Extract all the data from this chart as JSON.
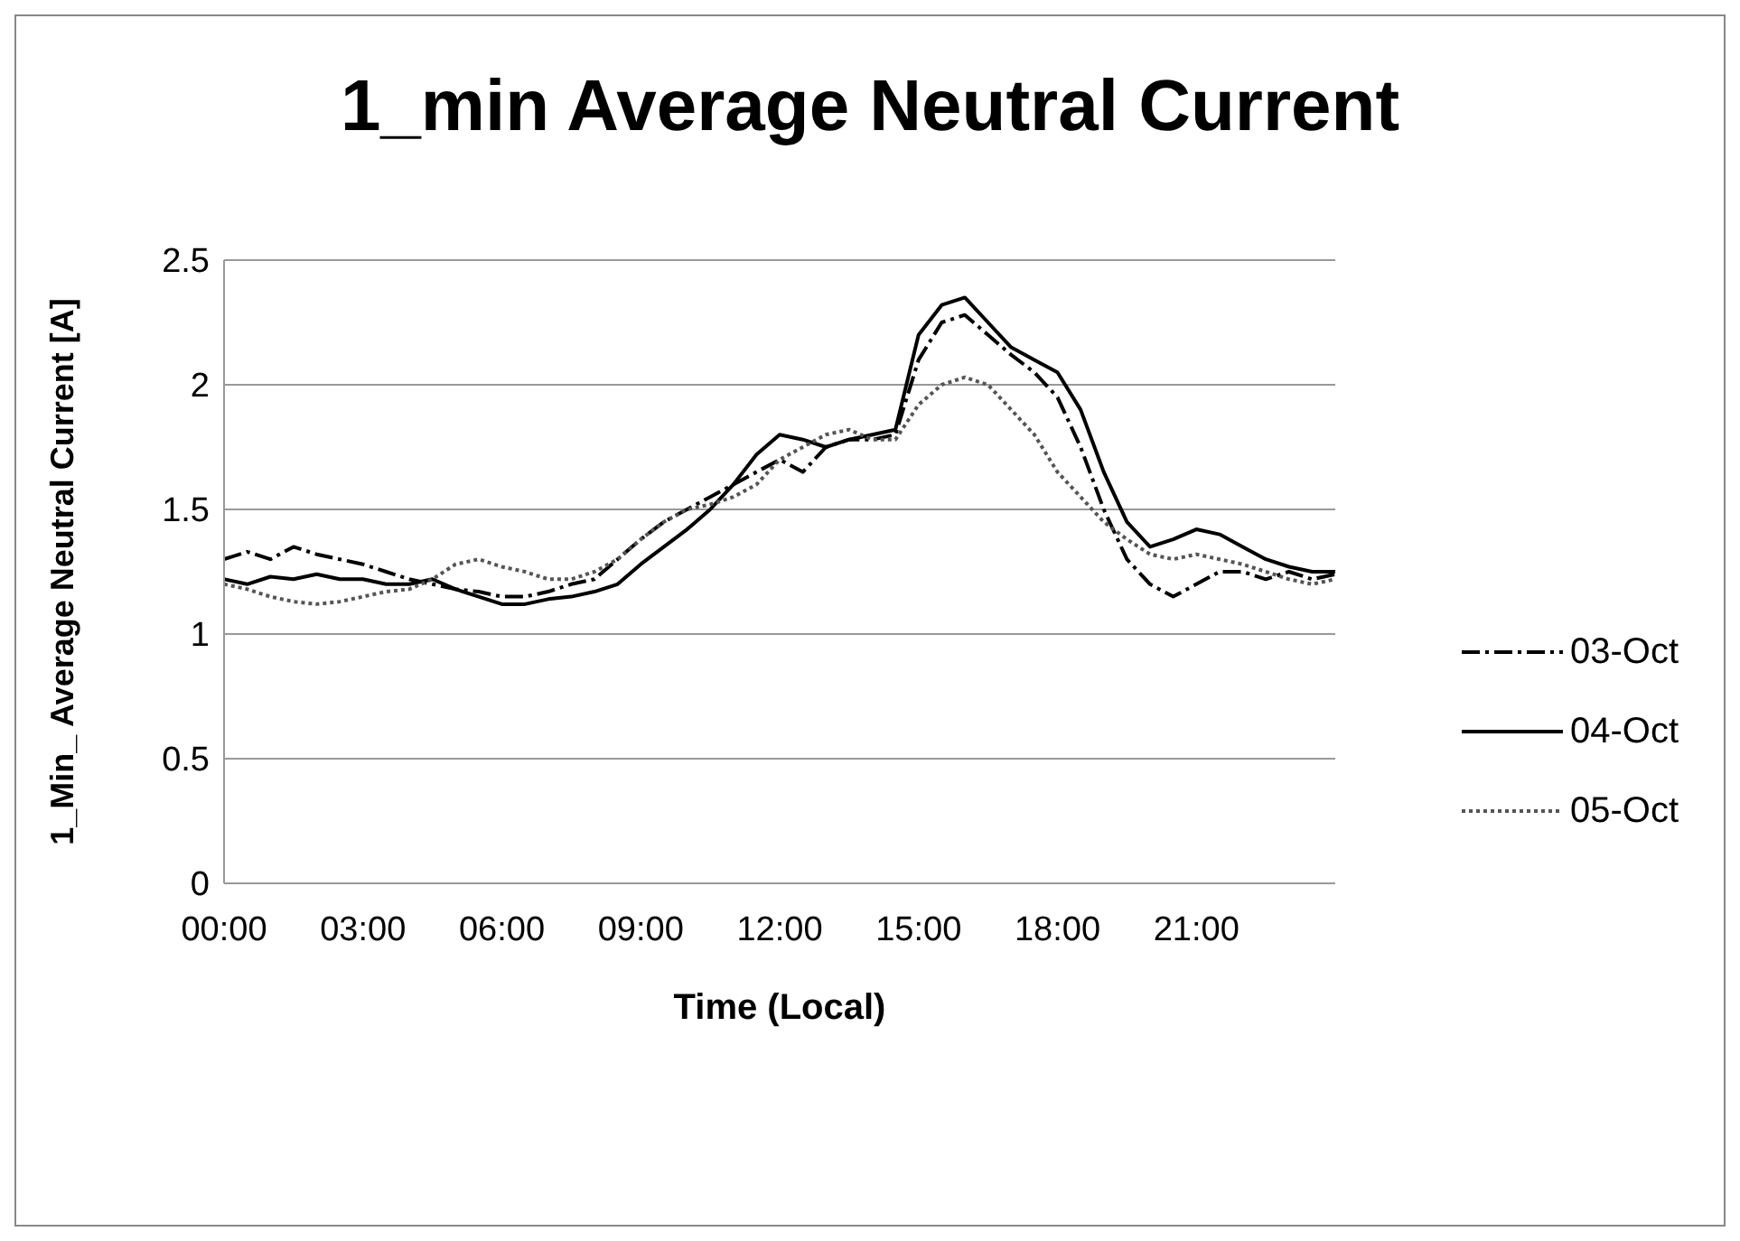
{
  "chart_data": {
    "type": "line",
    "title": "1_min Average Neutral Current",
    "xlabel": "Time (Local)",
    "ylabel": "1_Min_  Average Neutral Current  [A]",
    "x": [
      0,
      0.5,
      1,
      1.5,
      2,
      2.5,
      3,
      3.5,
      4,
      4.5,
      5,
      5.5,
      6,
      6.5,
      7,
      7.5,
      8,
      8.5,
      9,
      9.5,
      10,
      10.5,
      11,
      11.5,
      12,
      12.5,
      13,
      13.5,
      14,
      14.5,
      15,
      15.5,
      16,
      16.5,
      17,
      17.5,
      18,
      18.5,
      19,
      19.5,
      20,
      20.5,
      21,
      21.5,
      22,
      22.5,
      23,
      23.5,
      24
    ],
    "series": [
      {
        "name": "03-Oct",
        "color": "#000000",
        "line_style": "dashed",
        "values": [
          1.3,
          1.33,
          1.3,
          1.35,
          1.32,
          1.3,
          1.28,
          1.25,
          1.22,
          1.2,
          1.18,
          1.17,
          1.15,
          1.15,
          1.17,
          1.2,
          1.22,
          1.3,
          1.38,
          1.45,
          1.5,
          1.55,
          1.6,
          1.65,
          1.7,
          1.65,
          1.75,
          1.78,
          1.78,
          1.8,
          2.1,
          2.25,
          2.28,
          2.2,
          2.12,
          2.05,
          1.95,
          1.75,
          1.5,
          1.3,
          1.2,
          1.15,
          1.2,
          1.25,
          1.25,
          1.22,
          1.25,
          1.22,
          1.24
        ]
      },
      {
        "name": "04-Oct",
        "color": "#000000",
        "line_style": "solid",
        "values": [
          1.22,
          1.2,
          1.23,
          1.22,
          1.24,
          1.22,
          1.22,
          1.2,
          1.2,
          1.22,
          1.18,
          1.15,
          1.12,
          1.12,
          1.14,
          1.15,
          1.17,
          1.2,
          1.28,
          1.35,
          1.42,
          1.5,
          1.6,
          1.72,
          1.8,
          1.78,
          1.75,
          1.78,
          1.8,
          1.82,
          2.2,
          2.32,
          2.35,
          2.25,
          2.15,
          2.1,
          2.05,
          1.9,
          1.65,
          1.45,
          1.35,
          1.38,
          1.42,
          1.4,
          1.35,
          1.3,
          1.27,
          1.25,
          1.25
        ]
      },
      {
        "name": "05-Oct",
        "color": "#555555",
        "line_style": "dotted",
        "values": [
          1.2,
          1.18,
          1.15,
          1.13,
          1.12,
          1.13,
          1.15,
          1.17,
          1.18,
          1.22,
          1.28,
          1.3,
          1.27,
          1.25,
          1.22,
          1.22,
          1.25,
          1.3,
          1.38,
          1.45,
          1.5,
          1.52,
          1.55,
          1.6,
          1.7,
          1.75,
          1.8,
          1.82,
          1.78,
          1.78,
          1.92,
          2.0,
          2.03,
          2.0,
          1.9,
          1.8,
          1.65,
          1.55,
          1.45,
          1.38,
          1.32,
          1.3,
          1.32,
          1.3,
          1.28,
          1.25,
          1.22,
          1.2,
          1.22
        ]
      }
    ],
    "xlim": [
      0,
      24
    ],
    "xticks": [
      {
        "value": 0,
        "label": "00:00"
      },
      {
        "value": 3,
        "label": "03:00"
      },
      {
        "value": 6,
        "label": "06:00"
      },
      {
        "value": 9,
        "label": "09:00"
      },
      {
        "value": 12,
        "label": "12:00"
      },
      {
        "value": 15,
        "label": "15:00"
      },
      {
        "value": 18,
        "label": "18:00"
      },
      {
        "value": 21,
        "label": "21:00"
      }
    ],
    "ylim": [
      0,
      2.5
    ],
    "yticks": [
      0,
      0.5,
      1,
      1.5,
      2,
      2.5
    ],
    "grid": "y",
    "legend": "right",
    "marker": "none"
  }
}
